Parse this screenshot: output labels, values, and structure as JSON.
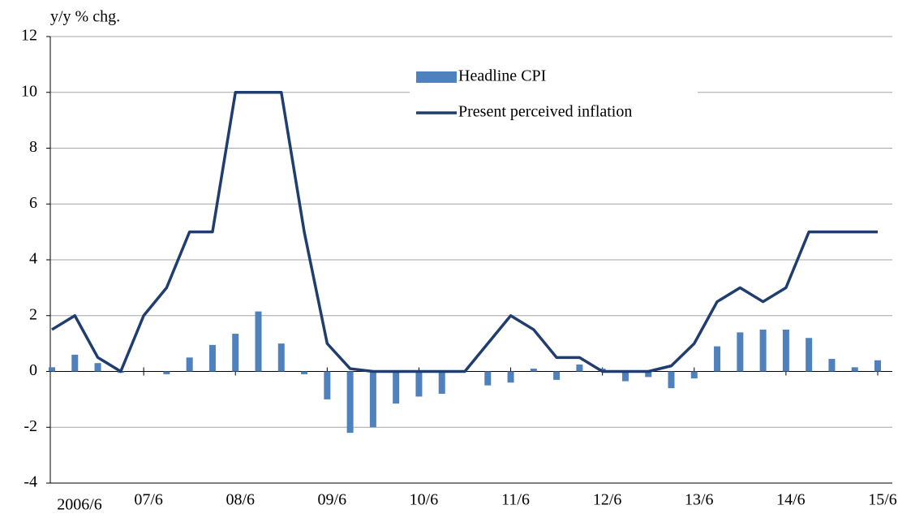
{
  "chart_data": {
    "type": "bar-line",
    "y_label": "y/y % chg.",
    "categories": [
      "2006/6",
      null,
      null,
      null,
      "07/6",
      null,
      null,
      null,
      "08/6",
      null,
      null,
      null,
      "09/6",
      null,
      null,
      null,
      "10/6",
      null,
      null,
      null,
      "11/6",
      null,
      null,
      null,
      "12/6",
      null,
      null,
      null,
      "13/6",
      null,
      null,
      null,
      "14/6",
      null,
      null,
      null,
      "15/6"
    ],
    "series": [
      {
        "name": "Headline CPI",
        "kind": "bar",
        "color": "#4f81bd",
        "values": [
          0.15,
          0.6,
          0.3,
          -0.05,
          0,
          -0.1,
          0.5,
          0.95,
          1.35,
          2.15,
          1.0,
          -0.1,
          -1.0,
          -2.2,
          -2.0,
          -1.15,
          -0.9,
          -0.8,
          0,
          -0.5,
          -0.4,
          0.1,
          -0.3,
          0.25,
          0.1,
          -0.35,
          -0.2,
          -0.6,
          -0.25,
          0.9,
          1.4,
          1.5,
          1.5,
          1.2,
          0.45,
          0.15,
          0.4
        ]
      },
      {
        "name": "Present perceived inflation",
        "kind": "line",
        "color": "#1f3d6e",
        "values": [
          1.5,
          2,
          0.5,
          0,
          2,
          3,
          5,
          5,
          10,
          10,
          10,
          5,
          1,
          0.1,
          0,
          0,
          0,
          0,
          0,
          1,
          2,
          1.5,
          0.5,
          0.5,
          0,
          0,
          0,
          0.2,
          1,
          2.5,
          3,
          2.5,
          3,
          5,
          5,
          5,
          5
        ]
      }
    ],
    "ylim": [
      -4,
      12
    ],
    "yticks": [
      -4,
      -2,
      0,
      2,
      4,
      6,
      8,
      10,
      12
    ],
    "grid": true,
    "legend": "top"
  }
}
